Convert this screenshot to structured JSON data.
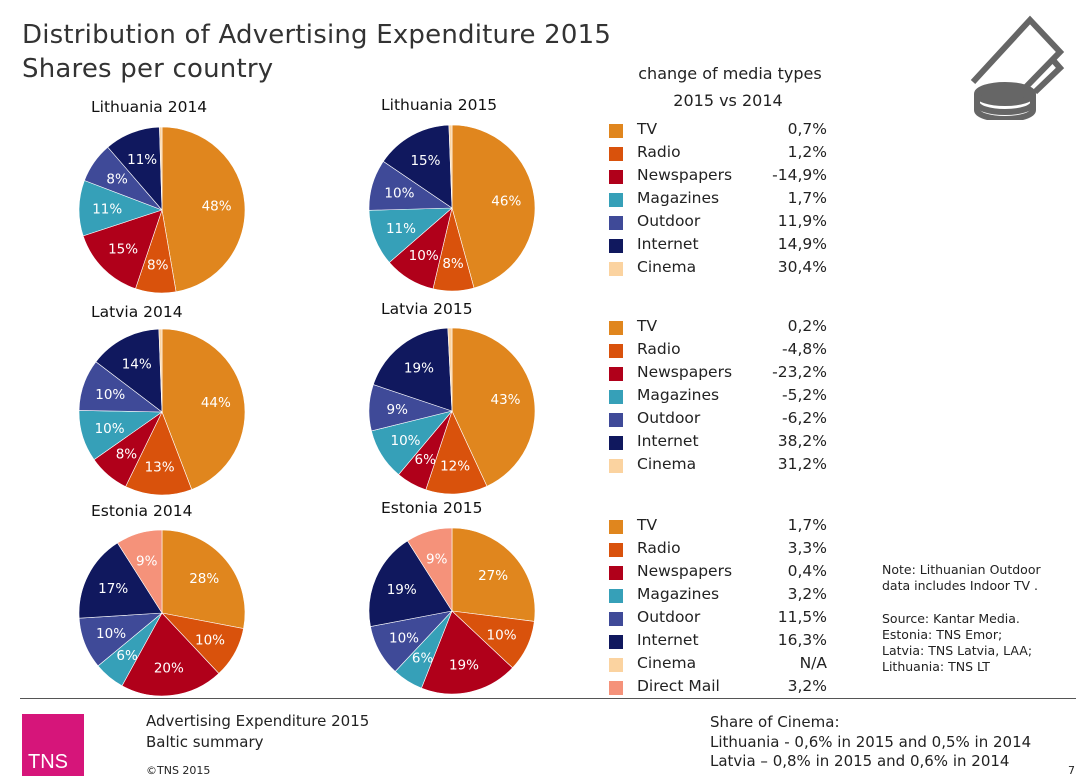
{
  "title_line1": "Distribution of Advertising Expenditure 2015",
  "title_line2": "Shares per country",
  "change_header_line1": "change of media types",
  "change_header_line2": "2015 vs 2014",
  "colors": {
    "TV": "#e0861e",
    "Radio": "#d9520c",
    "Newspapers": "#b0001a",
    "Magazines": "#36a0b8",
    "Outdoor": "#3f4a98",
    "Internet": "#10185e",
    "Cinema": "#fbd3a0",
    "Direct Mail": "#f5927a",
    "brand": "#d6157a"
  },
  "chart_data": [
    {
      "type": "pie",
      "title": "Lithuania 2014",
      "categories": [
        "TV",
        "Radio",
        "Newspapers",
        "Magazines",
        "Outdoor",
        "Internet",
        "Cinema"
      ],
      "values": [
        48,
        8,
        15,
        11,
        8,
        11,
        0.5
      ],
      "labels": [
        "48%",
        "8%",
        "15%",
        "11%",
        "8%",
        "11%",
        ""
      ]
    },
    {
      "type": "pie",
      "title": "Lithuania 2015",
      "categories": [
        "TV",
        "Radio",
        "Newspapers",
        "Magazines",
        "Outdoor",
        "Internet",
        "Cinema"
      ],
      "values": [
        46,
        8,
        10,
        11,
        10,
        15,
        0.6
      ],
      "labels": [
        "46%",
        "8%",
        "10%",
        "11%",
        "10%",
        "15%",
        ""
      ]
    },
    {
      "type": "pie",
      "title": "Latvia 2014",
      "categories": [
        "TV",
        "Radio",
        "Newspapers",
        "Magazines",
        "Outdoor",
        "Internet",
        "Cinema"
      ],
      "values": [
        44,
        13,
        8,
        10,
        10,
        14,
        0.6
      ],
      "labels": [
        "44%",
        "13%",
        "8%",
        "10%",
        "10%",
        "14%",
        ""
      ]
    },
    {
      "type": "pie",
      "title": "Latvia 2015",
      "categories": [
        "TV",
        "Radio",
        "Newspapers",
        "Magazines",
        "Outdoor",
        "Internet",
        "Cinema"
      ],
      "values": [
        43,
        12,
        6,
        10,
        9,
        19,
        0.8
      ],
      "labels": [
        "43%",
        "12%",
        "6%",
        "10%",
        "9%",
        "19%",
        ""
      ]
    },
    {
      "type": "pie",
      "title": "Estonia 2014",
      "categories": [
        "TV",
        "Radio",
        "Newspapers",
        "Magazines",
        "Outdoor",
        "Internet",
        "Direct Mail"
      ],
      "values": [
        28,
        10,
        20,
        6,
        10,
        17,
        9
      ],
      "labels": [
        "28%",
        "10%",
        "20%",
        "6%",
        "10%",
        "17%",
        "9%"
      ]
    },
    {
      "type": "pie",
      "title": "Estonia 2015",
      "categories": [
        "TV",
        "Radio",
        "Newspapers",
        "Magazines",
        "Outdoor",
        "Internet",
        "Direct Mail"
      ],
      "values": [
        27,
        10,
        19,
        6,
        10,
        19,
        9
      ],
      "labels": [
        "27%",
        "10%",
        "19%",
        "6%",
        "10%",
        "19%",
        "9%"
      ]
    }
  ],
  "changes": [
    [
      {
        "name": "TV",
        "value": "0,7%"
      },
      {
        "name": "Radio",
        "value": "1,2%"
      },
      {
        "name": "Newspapers",
        "value": "-14,9%"
      },
      {
        "name": "Magazines",
        "value": "1,7%"
      },
      {
        "name": "Outdoor",
        "value": "11,9%"
      },
      {
        "name": "Internet",
        "value": "14,9%"
      },
      {
        "name": "Cinema",
        "value": "30,4%"
      }
    ],
    [
      {
        "name": "TV",
        "value": "0,2%"
      },
      {
        "name": "Radio",
        "value": "-4,8%"
      },
      {
        "name": "Newspapers",
        "value": "-23,2%"
      },
      {
        "name": "Magazines",
        "value": "-5,2%"
      },
      {
        "name": "Outdoor",
        "value": "-6,2%"
      },
      {
        "name": "Internet",
        "value": "38,2%"
      },
      {
        "name": "Cinema",
        "value": "31,2%"
      }
    ],
    [
      {
        "name": "TV",
        "value": "1,7%"
      },
      {
        "name": "Radio",
        "value": "3,3%"
      },
      {
        "name": "Newspapers",
        "value": "0,4%"
      },
      {
        "name": "Magazines",
        "value": "3,2%"
      },
      {
        "name": "Outdoor",
        "value": "11,5%"
      },
      {
        "name": "Internet",
        "value": "16,3%"
      },
      {
        "name": "Cinema",
        "value": "N/A"
      },
      {
        "name": "Direct Mail",
        "value": "3,2%"
      }
    ]
  ],
  "note": [
    "Note: Lithuanian Outdoor",
    "data includes Indoor TV ."
  ],
  "source": [
    "Source: Kantar Media.",
    "Estonia: TNS Emor;",
    "Latvia: TNS Latvia, LAA;",
    "Lithuania: TNS LT"
  ],
  "footer": {
    "line1": "Advertising Expenditure 2015",
    "line2": "Baltic summary",
    "copyright": "©TNS 2015",
    "logo": "TNS",
    "page": "7",
    "cinema_title": "Share of Cinema:",
    "cinema_lt": "Lithuania - 0,6% in 2015 and 0,5% in 2014",
    "cinema_lv": "Latvia – 0,8% in 2015 and 0,6% in 2014"
  }
}
